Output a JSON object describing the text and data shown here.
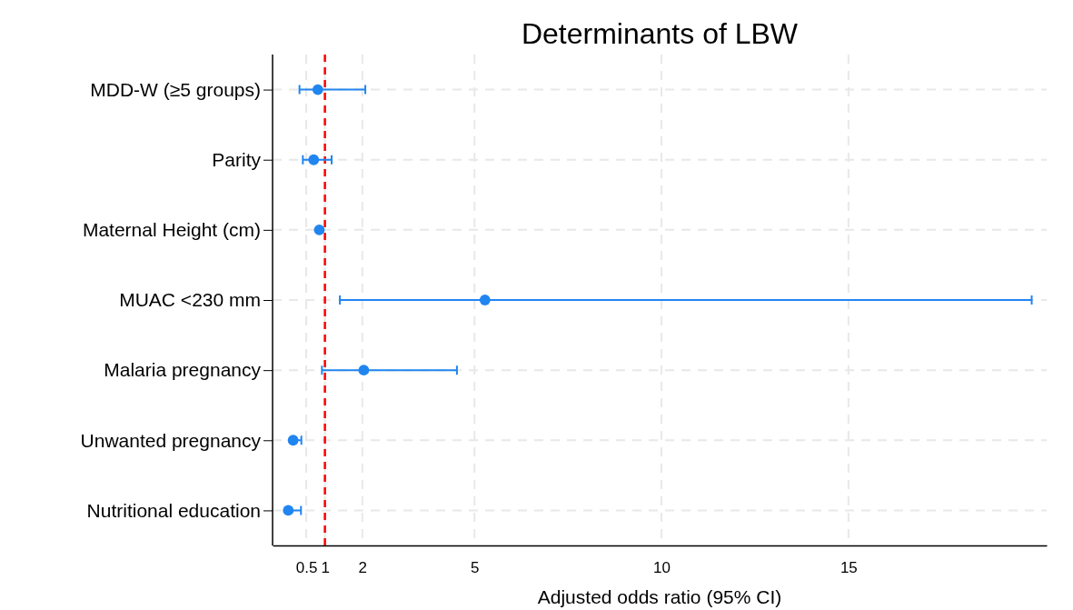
{
  "chart_data": {
    "type": "scatter",
    "orientation": "horizontal",
    "title": "Determinants of LBW",
    "xlabel": "Adjusted odds ratio (95% CI)",
    "categories": [
      "MDD-W (≥5 groups)",
      "Parity",
      "Maternal Height (cm)",
      "MUAC <230 mm",
      "Malaria pregnancy",
      "Unwanted pregnancy",
      "Nutritional education"
    ],
    "values": [
      0.81,
      0.7,
      0.85,
      5.28,
      2.04,
      0.15,
      0.02
    ],
    "errors": [
      [
        0.32,
        2.08
      ],
      [
        0.41,
        1.18
      ],
      null,
      [
        1.4,
        19.9
      ],
      [
        0.92,
        4.53
      ],
      [
        0.13,
        0.37
      ],
      [
        0.0,
        0.36
      ]
    ],
    "color": "#2185f0",
    "marker": "circle",
    "xlim": [
      -0.4,
      20.3
    ],
    "xticks": [
      0.5,
      1,
      2,
      5,
      10,
      15
    ],
    "grid": true,
    "ref_lines": [
      {
        "axis": "x",
        "value": 1,
        "color": "#ff0000",
        "line_style": "dashed"
      }
    ]
  }
}
